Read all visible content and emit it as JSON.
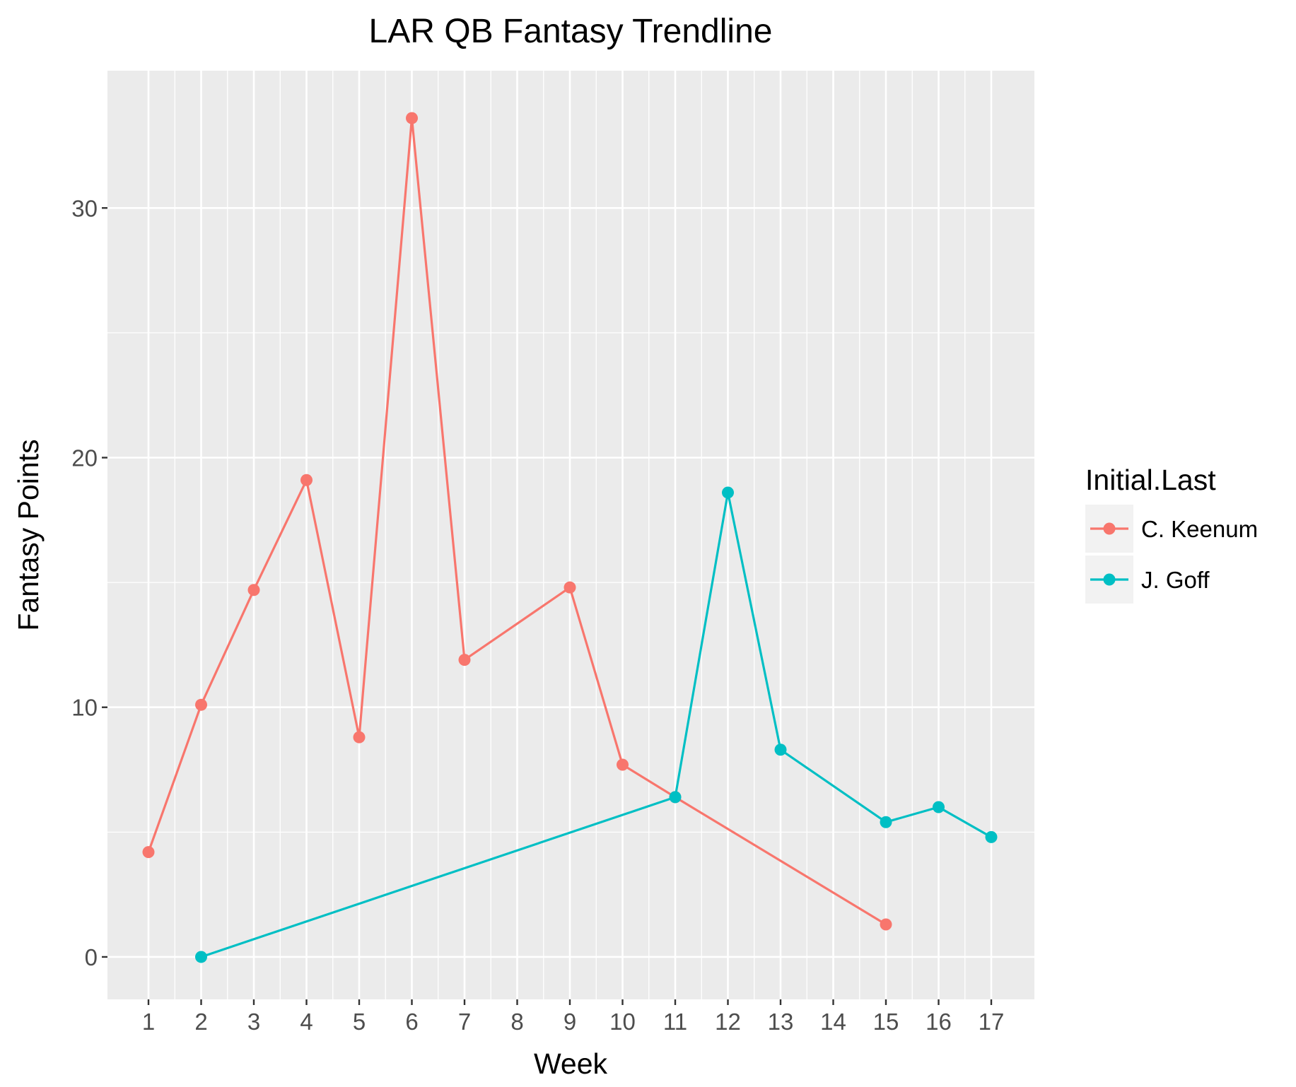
{
  "chart_data": {
    "type": "line",
    "title": "LAR QB Fantasy Trendline",
    "xlabel": "Week",
    "ylabel": "Fantasy Points",
    "x_categories": [
      "1",
      "2",
      "3",
      "4",
      "5",
      "6",
      "7",
      "8",
      "9",
      "10",
      "11",
      "12",
      "13",
      "14",
      "15",
      "16",
      "17"
    ],
    "ylim": [
      -1.7,
      35.5
    ],
    "y_ticks": [
      0,
      10,
      20,
      30
    ],
    "grid": true,
    "legend": {
      "title": "Initial.Last",
      "position": "right"
    },
    "series": [
      {
        "name": "C. Keenum",
        "color": "#F8766D",
        "x": [
          "1",
          "2",
          "3",
          "4",
          "5",
          "6",
          "7",
          "9",
          "10",
          "11",
          "15"
        ],
        "y": [
          4.2,
          10.1,
          14.7,
          19.1,
          8.8,
          33.6,
          11.9,
          14.8,
          7.7,
          6.4,
          1.3
        ]
      },
      {
        "name": "J. Goff",
        "color": "#00BFC4",
        "x": [
          "2",
          "11",
          "12",
          "13",
          "15",
          "16",
          "17"
        ],
        "y": [
          0.0,
          6.4,
          18.6,
          8.3,
          5.4,
          6.0,
          4.8
        ]
      }
    ]
  }
}
